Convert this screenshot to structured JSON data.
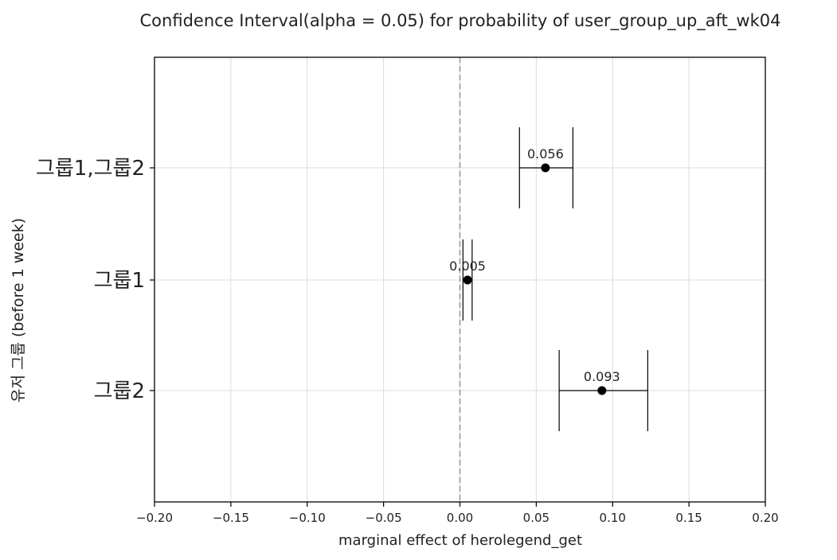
{
  "chart_data": {
    "type": "errorbar",
    "orientation": "horizontal",
    "title": "Confidence Interval(alpha = 0.05) for probability of user_group_up_aft_wk04",
    "xlabel": "marginal effect of herolegend_get",
    "ylabel": "유저 그룹 (before 1 week)",
    "xlim": [
      -0.2,
      0.2
    ],
    "xticks": [
      -0.2,
      -0.15,
      -0.1,
      -0.05,
      0.0,
      0.05,
      0.1,
      0.15,
      0.2
    ],
    "xtick_labels": [
      "−0.20",
      "−0.15",
      "−0.10",
      "−0.05",
      "0.00",
      "0.05",
      "0.10",
      "0.15",
      "0.20"
    ],
    "grid": true,
    "reference_line": 0.0,
    "categories": [
      "그룹1,그룹2",
      "그룹1",
      "그룹2"
    ],
    "estimates": [
      0.056,
      0.005,
      0.093
    ],
    "ci_lower": [
      0.039,
      0.002,
      0.065
    ],
    "ci_upper": [
      0.074,
      0.008,
      0.123
    ],
    "value_labels": [
      "0.056",
      "0.005",
      "0.093"
    ]
  }
}
